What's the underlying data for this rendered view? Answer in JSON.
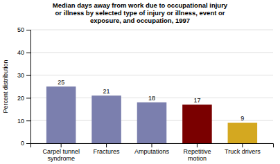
{
  "chart_data": {
    "type": "bar",
    "title": "Median days away from work due to occupational injury\nor illness by selected type of injury or illness, event or\nexposure, and occupation, 1997",
    "categories": [
      "Carpel tunnel\nsyndrome",
      "Fractures",
      "Amputations",
      "Repetitive\nmotion",
      "Truck drivers"
    ],
    "values": [
      25,
      21,
      18,
      17,
      9
    ],
    "colors": [
      "#7b7fae",
      "#7b7fae",
      "#7b7fae",
      "#7a0000",
      "#d4a820"
    ],
    "ylabel": "Percent distribution",
    "ylim": [
      0,
      50
    ],
    "yticks": [
      0,
      10,
      20,
      30,
      40,
      50
    ],
    "grid": true,
    "data_labels": true
  }
}
